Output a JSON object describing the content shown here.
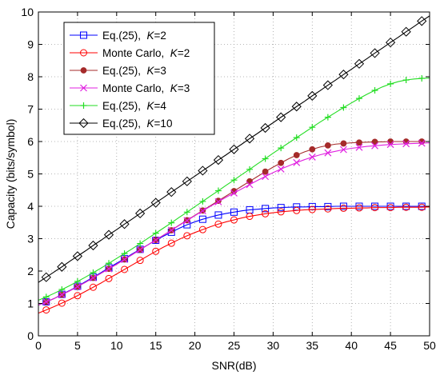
{
  "chart_data": {
    "type": "line",
    "title": "",
    "xlabel": "SNR(dB)",
    "ylabel": "Capacity (bits/symbol)",
    "xlim": [
      0,
      50
    ],
    "ylim": [
      0,
      10
    ],
    "xticks": [
      0,
      5,
      10,
      15,
      20,
      25,
      30,
      35,
      40,
      45,
      50
    ],
    "yticks": [
      0,
      1,
      2,
      3,
      4,
      5,
      6,
      7,
      8,
      9,
      10
    ],
    "grid": true,
    "legend_position": "top-left",
    "x": [
      0,
      1,
      2,
      3,
      4,
      5,
      6,
      7,
      8,
      9,
      10,
      11,
      12,
      13,
      14,
      15,
      16,
      17,
      18,
      19,
      20,
      21,
      22,
      23,
      24,
      25,
      26,
      27,
      28,
      29,
      30,
      31,
      32,
      33,
      34,
      35,
      36,
      37,
      38,
      39,
      40,
      41,
      42,
      43,
      44,
      45,
      46,
      47,
      48,
      49,
      50
    ],
    "series": [
      {
        "name_prefix": "Eq.(25),",
        "name_k": "K",
        "name_value": "=2",
        "color": "#0000ff",
        "marker": "square",
        "marker_fill": "none",
        "marker_every": 2,
        "values": [
          0.95,
          1.05,
          1.15,
          1.28,
          1.4,
          1.53,
          1.67,
          1.81,
          1.95,
          2.1,
          2.24,
          2.38,
          2.53,
          2.67,
          2.81,
          2.95,
          3.08,
          3.2,
          3.32,
          3.43,
          3.52,
          3.6,
          3.67,
          3.73,
          3.78,
          3.82,
          3.86,
          3.89,
          3.91,
          3.93,
          3.95,
          3.96,
          3.97,
          3.98,
          3.98,
          3.99,
          3.99,
          3.99,
          4.0,
          4.0,
          4.0,
          4.0,
          4.0,
          4.0,
          4.0,
          4.0,
          4.0,
          4.0,
          4.0,
          4.0,
          4.0
        ]
      },
      {
        "name_prefix": "Monte Carlo,",
        "name_k": "K",
        "name_value": "=2",
        "color": "#ff0000",
        "marker": "circle",
        "marker_fill": "none",
        "marker_every": 2,
        "values": [
          0.7,
          0.8,
          0.9,
          1.01,
          1.12,
          1.24,
          1.37,
          1.5,
          1.63,
          1.77,
          1.91,
          2.05,
          2.19,
          2.33,
          2.47,
          2.61,
          2.74,
          2.86,
          2.98,
          3.09,
          3.19,
          3.28,
          3.37,
          3.45,
          3.52,
          3.58,
          3.64,
          3.69,
          3.73,
          3.77,
          3.8,
          3.83,
          3.85,
          3.87,
          3.89,
          3.9,
          3.91,
          3.92,
          3.93,
          3.94,
          3.94,
          3.95,
          3.95,
          3.96,
          3.96,
          3.96,
          3.97,
          3.97,
          3.97,
          3.97,
          3.98
        ]
      },
      {
        "name_prefix": "Eq.(25),",
        "name_k": "K",
        "name_value": "=3",
        "color": "#a52a2a",
        "marker": "dot",
        "marker_fill": "solid",
        "marker_every": 2,
        "values": [
          0.95,
          1.05,
          1.15,
          1.27,
          1.39,
          1.52,
          1.65,
          1.79,
          1.93,
          2.07,
          2.21,
          2.36,
          2.51,
          2.66,
          2.81,
          2.96,
          3.11,
          3.26,
          3.42,
          3.57,
          3.72,
          3.87,
          4.02,
          4.17,
          4.32,
          4.47,
          4.62,
          4.77,
          4.92,
          5.07,
          5.21,
          5.34,
          5.47,
          5.58,
          5.68,
          5.76,
          5.83,
          5.88,
          5.92,
          5.94,
          5.96,
          5.97,
          5.98,
          5.99,
          5.99,
          6.0,
          6.0,
          6.0,
          6.0,
          6.0,
          6.0
        ]
      },
      {
        "name_prefix": "Monte Carlo,",
        "name_k": "K",
        "name_value": "=3",
        "color": "#e020e0",
        "marker": "cross",
        "marker_fill": "none",
        "marker_every": 2,
        "values": [
          0.95,
          1.05,
          1.15,
          1.27,
          1.39,
          1.52,
          1.65,
          1.79,
          1.93,
          2.07,
          2.21,
          2.36,
          2.51,
          2.66,
          2.81,
          2.96,
          3.11,
          3.26,
          3.41,
          3.56,
          3.71,
          3.86,
          4.0,
          4.14,
          4.28,
          4.41,
          4.54,
          4.67,
          4.8,
          4.92,
          5.04,
          5.15,
          5.25,
          5.35,
          5.44,
          5.52,
          5.59,
          5.65,
          5.7,
          5.75,
          5.79,
          5.82,
          5.85,
          5.87,
          5.89,
          5.91,
          5.92,
          5.93,
          5.94,
          5.95,
          5.96
        ]
      },
      {
        "name_prefix": "Eq.(25),",
        "name_k": "K",
        "name_value": "=4",
        "color": "#22dd22",
        "marker": "plus",
        "marker_fill": "none",
        "marker_every": 2,
        "values": [
          1.1,
          1.2,
          1.31,
          1.43,
          1.55,
          1.68,
          1.81,
          1.95,
          2.09,
          2.24,
          2.39,
          2.54,
          2.69,
          2.85,
          3.01,
          3.17,
          3.33,
          3.49,
          3.66,
          3.82,
          3.99,
          4.15,
          4.32,
          4.48,
          4.65,
          4.81,
          4.98,
          5.14,
          5.31,
          5.47,
          5.64,
          5.8,
          5.96,
          6.12,
          6.28,
          6.44,
          6.6,
          6.75,
          6.9,
          7.05,
          7.19,
          7.33,
          7.46,
          7.58,
          7.69,
          7.78,
          7.85,
          7.9,
          7.93,
          7.95,
          7.96
        ]
      },
      {
        "name_prefix": "Eq.(25),",
        "name_k": "K",
        "name_value": "=10",
        "color": "#000000",
        "marker": "diamond",
        "marker_fill": "none",
        "marker_every": 2,
        "values": [
          1.65,
          1.81,
          1.97,
          2.13,
          2.3,
          2.46,
          2.62,
          2.79,
          2.95,
          3.12,
          3.28,
          3.45,
          3.61,
          3.78,
          3.94,
          4.11,
          4.27,
          4.44,
          4.6,
          4.77,
          4.93,
          5.1,
          5.26,
          5.43,
          5.59,
          5.76,
          5.92,
          6.09,
          6.25,
          6.42,
          6.58,
          6.75,
          6.91,
          7.08,
          7.24,
          7.41,
          7.57,
          7.74,
          7.9,
          8.07,
          8.23,
          8.4,
          8.56,
          8.73,
          8.89,
          9.06,
          9.22,
          9.39,
          9.55,
          9.72,
          9.88
        ]
      }
    ]
  }
}
